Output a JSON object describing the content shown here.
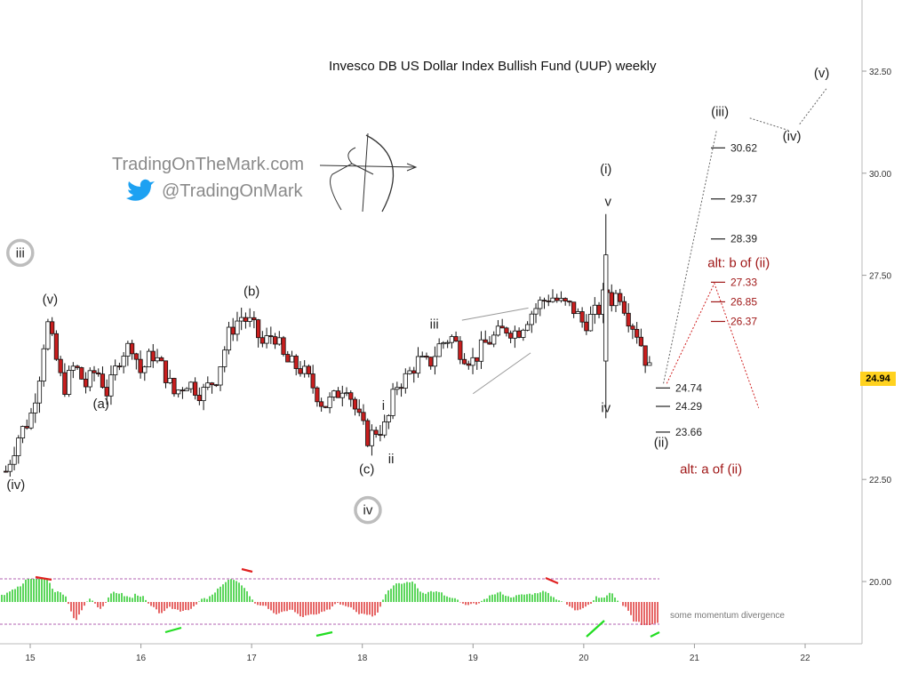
{
  "chart_data": {
    "type": "candlestick",
    "title": "Invesco DB US Dollar Index Bullish Fund (UUP) weekly",
    "last_price": "24.94",
    "x_ticks": [
      "15",
      "16",
      "17",
      "18",
      "19",
      "20",
      "21",
      "22"
    ],
    "y_ticks": [
      "32.50",
      "30.00",
      "27.50",
      "25.00",
      "22.50",
      "20.00"
    ],
    "ylim": [
      18.8,
      34.5
    ],
    "xlim": [
      14.75,
      22.5
    ],
    "ohlc_path": [
      [
        14.78,
        22.7
      ],
      [
        14.9,
        23.6
      ],
      [
        15.0,
        24.0
      ],
      [
        15.08,
        25.0
      ],
      [
        15.15,
        26.4
      ],
      [
        15.22,
        25.6
      ],
      [
        15.3,
        24.7
      ],
      [
        15.4,
        25.3
      ],
      [
        15.5,
        24.8
      ],
      [
        15.6,
        25.2
      ],
      [
        15.7,
        24.6
      ],
      [
        15.82,
        25.6
      ],
      [
        15.92,
        25.8
      ],
      [
        16.0,
        25.1
      ],
      [
        16.1,
        25.6
      ],
      [
        16.2,
        25.2
      ],
      [
        16.3,
        24.6
      ],
      [
        16.42,
        24.9
      ],
      [
        16.55,
        24.6
      ],
      [
        16.68,
        25.0
      ],
      [
        16.8,
        26.1
      ],
      [
        16.9,
        26.5
      ],
      [
        17.0,
        26.3
      ],
      [
        17.1,
        25.8
      ],
      [
        17.2,
        26.1
      ],
      [
        17.3,
        25.4
      ],
      [
        17.45,
        25.2
      ],
      [
        17.55,
        24.8
      ],
      [
        17.65,
        24.3
      ],
      [
        17.75,
        24.5
      ],
      [
        17.85,
        24.9
      ],
      [
        17.95,
        24.1
      ],
      [
        18.05,
        23.5
      ],
      [
        18.12,
        23.7
      ],
      [
        18.22,
        23.8
      ],
      [
        18.3,
        24.8
      ],
      [
        18.4,
        25.0
      ],
      [
        18.5,
        25.4
      ],
      [
        18.6,
        25.3
      ],
      [
        18.7,
        25.8
      ],
      [
        18.8,
        26.0
      ],
      [
        18.9,
        25.6
      ],
      [
        19.0,
        25.4
      ],
      [
        19.1,
        25.8
      ],
      [
        19.2,
        26.0
      ],
      [
        19.3,
        26.2
      ],
      [
        19.4,
        26.1
      ],
      [
        19.5,
        26.5
      ],
      [
        19.6,
        26.8
      ],
      [
        19.7,
        27.0
      ],
      [
        19.8,
        26.8
      ],
      [
        19.9,
        26.7
      ],
      [
        20.0,
        26.3
      ],
      [
        20.08,
        26.5
      ],
      [
        20.15,
        26.7
      ],
      [
        20.2,
        27.2
      ],
      [
        20.25,
        26.9
      ],
      [
        20.32,
        27.1
      ],
      [
        20.4,
        26.5
      ],
      [
        20.5,
        26.0
      ],
      [
        20.55,
        25.5
      ],
      [
        20.63,
        24.94
      ]
    ],
    "volatility_seed": 7,
    "projection_levels": [
      {
        "label": "30.62",
        "value": 30.62,
        "color": "#222222"
      },
      {
        "label": "29.37",
        "value": 29.37,
        "color": "#222222"
      },
      {
        "label": "28.39",
        "value": 28.39,
        "color": "#222222"
      },
      {
        "label": "27.33",
        "value": 27.33,
        "color": "#a01818"
      },
      {
        "label": "26.85",
        "value": 26.85,
        "color": "#a01818"
      },
      {
        "label": "26.37",
        "value": 26.37,
        "color": "#a01818"
      },
      {
        "label": "24.74",
        "value": 24.74,
        "color": "#222222"
      },
      {
        "label": "24.29",
        "value": 24.29,
        "color": "#222222"
      },
      {
        "label": "23.66",
        "value": 23.66,
        "color": "#222222"
      }
    ],
    "wave_labels": [
      {
        "text": "(iv)",
        "x": 14.87,
        "y": 22.27,
        "color": "#222222"
      },
      {
        "text": "(v)",
        "x": 15.18,
        "y": 26.8,
        "color": "#222222"
      },
      {
        "text": "(a)",
        "x": 15.64,
        "y": 24.25,
        "color": "#222222"
      },
      {
        "text": "(b)",
        "x": 17.0,
        "y": 27.0,
        "color": "#222222"
      },
      {
        "text": "(c)",
        "x": 18.04,
        "y": 22.65,
        "color": "#222222"
      },
      {
        "text": "i",
        "x": 18.19,
        "y": 24.2,
        "color": "#222222"
      },
      {
        "text": "ii",
        "x": 18.26,
        "y": 22.9,
        "color": "#222222"
      },
      {
        "text": "iii",
        "x": 18.65,
        "y": 26.2,
        "color": "#222222"
      },
      {
        "text": "(i)",
        "x": 20.2,
        "y": 30.0,
        "color": "#222222"
      },
      {
        "text": "v",
        "x": 20.22,
        "y": 29.2,
        "color": "#222222"
      },
      {
        "text": "iv",
        "x": 20.2,
        "y": 24.15,
        "color": "#222222"
      },
      {
        "text": "(ii)",
        "x": 20.7,
        "y": 23.3,
        "color": "#222222"
      },
      {
        "text": "(iii)",
        "x": 21.23,
        "y": 31.4,
        "color": "#222222"
      },
      {
        "text": "(iv)",
        "x": 21.88,
        "y": 30.8,
        "color": "#222222"
      },
      {
        "text": "(v)",
        "x": 22.15,
        "y": 32.35,
        "color": "#222222"
      },
      {
        "text": "alt: b of (ii)",
        "x": 21.4,
        "y": 27.7,
        "color": "#a01818"
      },
      {
        "text": "alt: a of (ii)",
        "x": 21.15,
        "y": 22.65,
        "color": "#a01818"
      }
    ],
    "circled_labels": [
      {
        "text": "iii",
        "x": 14.91,
        "y": 28.05
      },
      {
        "text": "iv",
        "x": 18.05,
        "y": 21.75
      }
    ],
    "projection_paths": {
      "main": [
        [
          20.72,
          24.85
        ],
        [
          21.2,
          31.05
        ]
      ],
      "iv_leg": [
        [
          21.5,
          31.35
        ],
        [
          21.85,
          31.05
        ]
      ],
      "v_leg": [
        [
          21.95,
          31.2
        ],
        [
          22.2,
          32.1
        ]
      ],
      "alt": [
        [
          20.75,
          24.85
        ],
        [
          21.18,
          27.3
        ],
        [
          21.58,
          24.25
        ]
      ]
    },
    "triangle_lines": [
      [
        [
          18.9,
          26.4
        ],
        [
          19.5,
          26.7
        ]
      ],
      [
        [
          19.0,
          24.6
        ],
        [
          19.52,
          25.6
        ]
      ]
    ],
    "momentum": {
      "note": "some momentum divergence",
      "upper_band": 20.0,
      "lower_band": 18.95,
      "baseline": 19.47
    },
    "branding": {
      "site": "TradingOnTheMark.com",
      "handle": "@TradingOnMark"
    }
  }
}
